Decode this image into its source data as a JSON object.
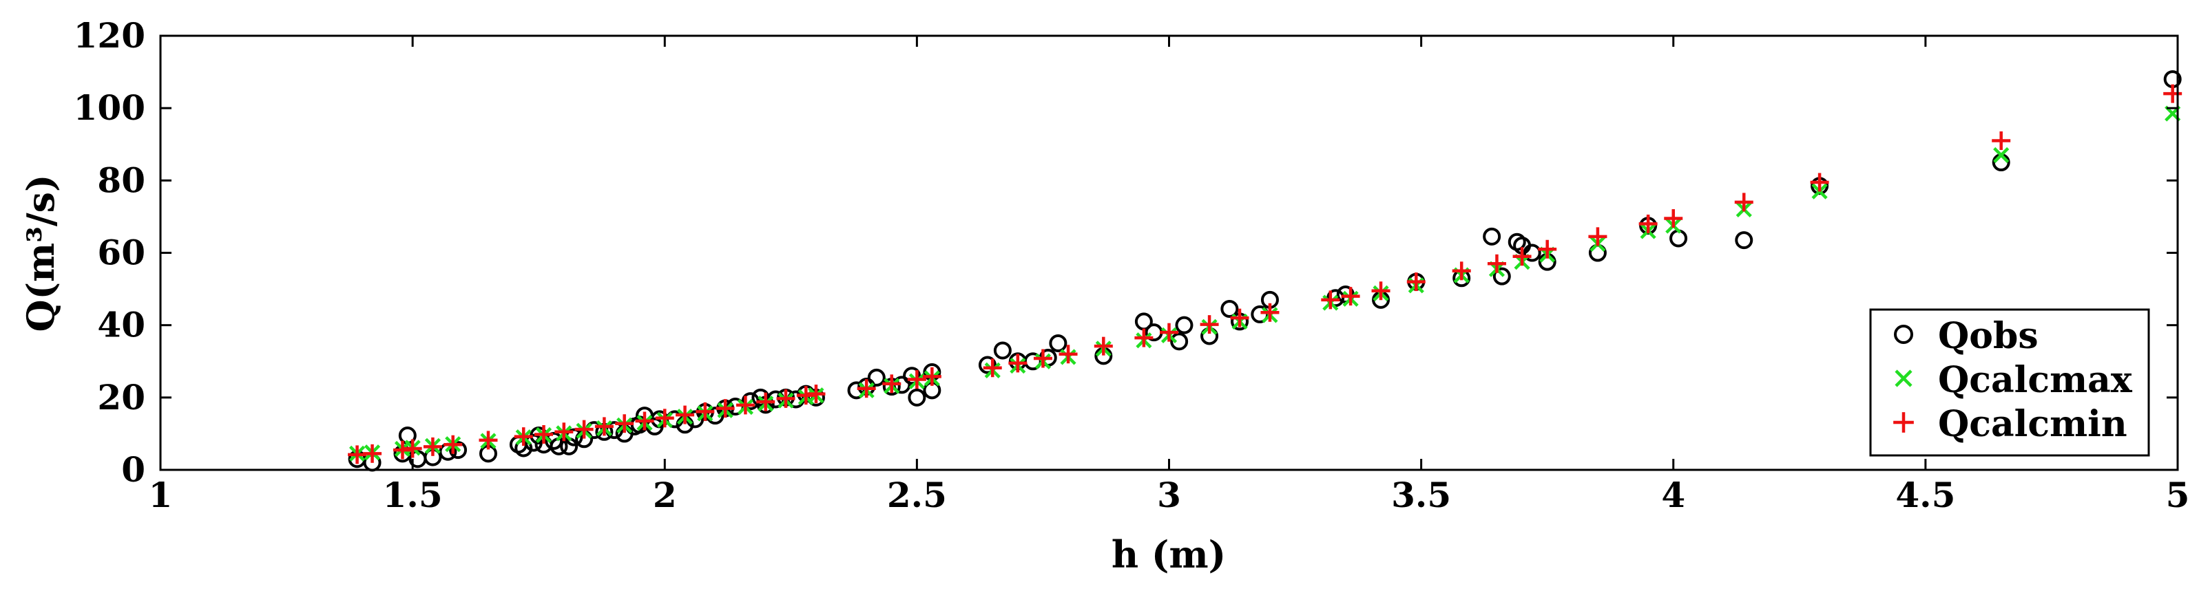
{
  "chart_data": {
    "type": "scatter",
    "xlabel": "h (m)",
    "ylabel": "Q(m³/s)",
    "xlim": [
      1,
      5
    ],
    "ylim": [
      0,
      120
    ],
    "xticks": [
      "1",
      "1.5",
      "2",
      "2.5",
      "3",
      "3.5",
      "4",
      "4.5",
      "5"
    ],
    "yticks": [
      "0",
      "20",
      "40",
      "60",
      "80",
      "100",
      "120"
    ],
    "grid": false,
    "legend_position": "bottom-right",
    "series": [
      {
        "name": "Qobs",
        "marker": "circle",
        "color": "#000000",
        "points": [
          [
            1.39,
            3
          ],
          [
            1.42,
            2
          ],
          [
            1.48,
            4.5
          ],
          [
            1.49,
            9.5
          ],
          [
            1.51,
            3
          ],
          [
            1.54,
            3.5
          ],
          [
            1.57,
            5
          ],
          [
            1.59,
            5.5
          ],
          [
            1.65,
            4.5
          ],
          [
            1.71,
            7
          ],
          [
            1.72,
            6
          ],
          [
            1.74,
            7.5
          ],
          [
            1.75,
            9.5
          ],
          [
            1.76,
            7
          ],
          [
            1.78,
            8
          ],
          [
            1.79,
            6.5
          ],
          [
            1.81,
            6.5
          ],
          [
            1.82,
            9
          ],
          [
            1.84,
            8.5
          ],
          [
            1.86,
            11
          ],
          [
            1.88,
            10.5
          ],
          [
            1.9,
            11
          ],
          [
            1.92,
            10
          ],
          [
            1.94,
            12
          ],
          [
            1.95,
            12.5
          ],
          [
            1.96,
            15
          ],
          [
            1.98,
            12
          ],
          [
            1.99,
            14
          ],
          [
            2.02,
            14
          ],
          [
            2.04,
            12.5
          ],
          [
            2.06,
            14
          ],
          [
            2.08,
            16
          ],
          [
            2.1,
            15
          ],
          [
            2.12,
            17
          ],
          [
            2.14,
            17.5
          ],
          [
            2.17,
            19
          ],
          [
            2.19,
            20
          ],
          [
            2.2,
            18
          ],
          [
            2.22,
            19.5
          ],
          [
            2.24,
            20
          ],
          [
            2.26,
            19.5
          ],
          [
            2.28,
            21
          ],
          [
            2.3,
            20
          ],
          [
            2.38,
            22
          ],
          [
            2.4,
            23
          ],
          [
            2.42,
            25.5
          ],
          [
            2.45,
            23
          ],
          [
            2.47,
            23.5
          ],
          [
            2.49,
            26
          ],
          [
            2.5,
            20
          ],
          [
            2.53,
            22
          ],
          [
            2.53,
            27
          ],
          [
            2.64,
            29
          ],
          [
            2.67,
            33
          ],
          [
            2.7,
            30
          ],
          [
            2.73,
            30
          ],
          [
            2.76,
            31
          ],
          [
            2.78,
            35
          ],
          [
            2.87,
            31.5
          ],
          [
            2.95,
            41
          ],
          [
            2.97,
            38
          ],
          [
            3.02,
            35.5
          ],
          [
            3.03,
            40
          ],
          [
            3.08,
            37
          ],
          [
            3.12,
            44.5
          ],
          [
            3.14,
            41
          ],
          [
            3.18,
            43
          ],
          [
            3.2,
            47
          ],
          [
            3.33,
            47.5
          ],
          [
            3.35,
            48.5
          ],
          [
            3.42,
            47
          ],
          [
            3.49,
            52
          ],
          [
            3.58,
            53
          ],
          [
            3.64,
            64.5
          ],
          [
            3.66,
            53.5
          ],
          [
            3.69,
            63
          ],
          [
            3.7,
            62
          ],
          [
            3.72,
            60
          ],
          [
            3.75,
            57.5
          ],
          [
            3.85,
            60
          ],
          [
            3.95,
            67.5
          ],
          [
            4.01,
            64
          ],
          [
            4.14,
            63.5
          ],
          [
            4.29,
            78.5
          ],
          [
            4.65,
            85
          ],
          [
            4.99,
            108
          ]
        ]
      },
      {
        "name": "Qcalcmax",
        "marker": "x",
        "color": "#22dd22",
        "points": [
          [
            1.39,
            4.5
          ],
          [
            1.42,
            4.8
          ],
          [
            1.48,
            5.8
          ],
          [
            1.5,
            6.1
          ],
          [
            1.54,
            6.6
          ],
          [
            1.58,
            7.1
          ],
          [
            1.65,
            8
          ],
          [
            1.72,
            9
          ],
          [
            1.76,
            9.6
          ],
          [
            1.8,
            10.1
          ],
          [
            1.84,
            10.8
          ],
          [
            1.88,
            11.5
          ],
          [
            1.92,
            12.3
          ],
          [
            1.96,
            13
          ],
          [
            2.0,
            13.8
          ],
          [
            2.04,
            14.7
          ],
          [
            2.08,
            15.6
          ],
          [
            2.12,
            16.5
          ],
          [
            2.16,
            17.4
          ],
          [
            2.2,
            18.3
          ],
          [
            2.24,
            19.2
          ],
          [
            2.28,
            20.1
          ],
          [
            2.3,
            20.6
          ],
          [
            2.4,
            22
          ],
          [
            2.45,
            23.2
          ],
          [
            2.5,
            24.5
          ],
          [
            2.53,
            25.3
          ],
          [
            2.65,
            27.5
          ],
          [
            2.7,
            28.8
          ],
          [
            2.75,
            30
          ],
          [
            2.8,
            31.2
          ],
          [
            2.87,
            33.5
          ],
          [
            2.95,
            35.8
          ],
          [
            3.0,
            37.2
          ],
          [
            3.08,
            39.5
          ],
          [
            3.14,
            41
          ],
          [
            3.2,
            42.8
          ],
          [
            3.32,
            46.2
          ],
          [
            3.36,
            47.3
          ],
          [
            3.42,
            48.8
          ],
          [
            3.49,
            51
          ],
          [
            3.58,
            53.8
          ],
          [
            3.65,
            55.5
          ],
          [
            3.7,
            57.5
          ],
          [
            3.75,
            59.5
          ],
          [
            3.85,
            62.5
          ],
          [
            3.95,
            66
          ],
          [
            4.0,
            67.5
          ],
          [
            4.14,
            72
          ],
          [
            4.29,
            77
          ],
          [
            4.65,
            87
          ],
          [
            4.99,
            98.5
          ]
        ]
      },
      {
        "name": "Qcalcmin",
        "marker": "plus",
        "color": "#ee1111",
        "points": [
          [
            1.39,
            4.2
          ],
          [
            1.42,
            4.5
          ],
          [
            1.48,
            5.5
          ],
          [
            1.5,
            5.9
          ],
          [
            1.54,
            6.4
          ],
          [
            1.58,
            7
          ],
          [
            1.65,
            8.2
          ],
          [
            1.72,
            9.2
          ],
          [
            1.76,
            9.8
          ],
          [
            1.8,
            10.5
          ],
          [
            1.84,
            11.2
          ],
          [
            1.88,
            12
          ],
          [
            1.92,
            12.8
          ],
          [
            1.96,
            13.5
          ],
          [
            2.0,
            14.3
          ],
          [
            2.04,
            15.2
          ],
          [
            2.08,
            16.1
          ],
          [
            2.12,
            17
          ],
          [
            2.16,
            17.9
          ],
          [
            2.2,
            18.8
          ],
          [
            2.24,
            19.7
          ],
          [
            2.28,
            20.6
          ],
          [
            2.3,
            21
          ],
          [
            2.4,
            22.5
          ],
          [
            2.45,
            23.8
          ],
          [
            2.5,
            25
          ],
          [
            2.53,
            25.8
          ],
          [
            2.65,
            28.2
          ],
          [
            2.7,
            29.5
          ],
          [
            2.75,
            30.8
          ],
          [
            2.8,
            32
          ],
          [
            2.87,
            34.2
          ],
          [
            2.95,
            36.5
          ],
          [
            3.0,
            38
          ],
          [
            3.08,
            40.2
          ],
          [
            3.14,
            42
          ],
          [
            3.2,
            43.5
          ],
          [
            3.32,
            47
          ],
          [
            3.36,
            48
          ],
          [
            3.42,
            49.5
          ],
          [
            3.49,
            52
          ],
          [
            3.58,
            55
          ],
          [
            3.65,
            57
          ],
          [
            3.7,
            59
          ],
          [
            3.75,
            61
          ],
          [
            3.85,
            64.5
          ],
          [
            3.95,
            68
          ],
          [
            4.0,
            69.5
          ],
          [
            4.14,
            74
          ],
          [
            4.29,
            79.5
          ],
          [
            4.65,
            91
          ],
          [
            4.99,
            104
          ]
        ]
      }
    ]
  }
}
